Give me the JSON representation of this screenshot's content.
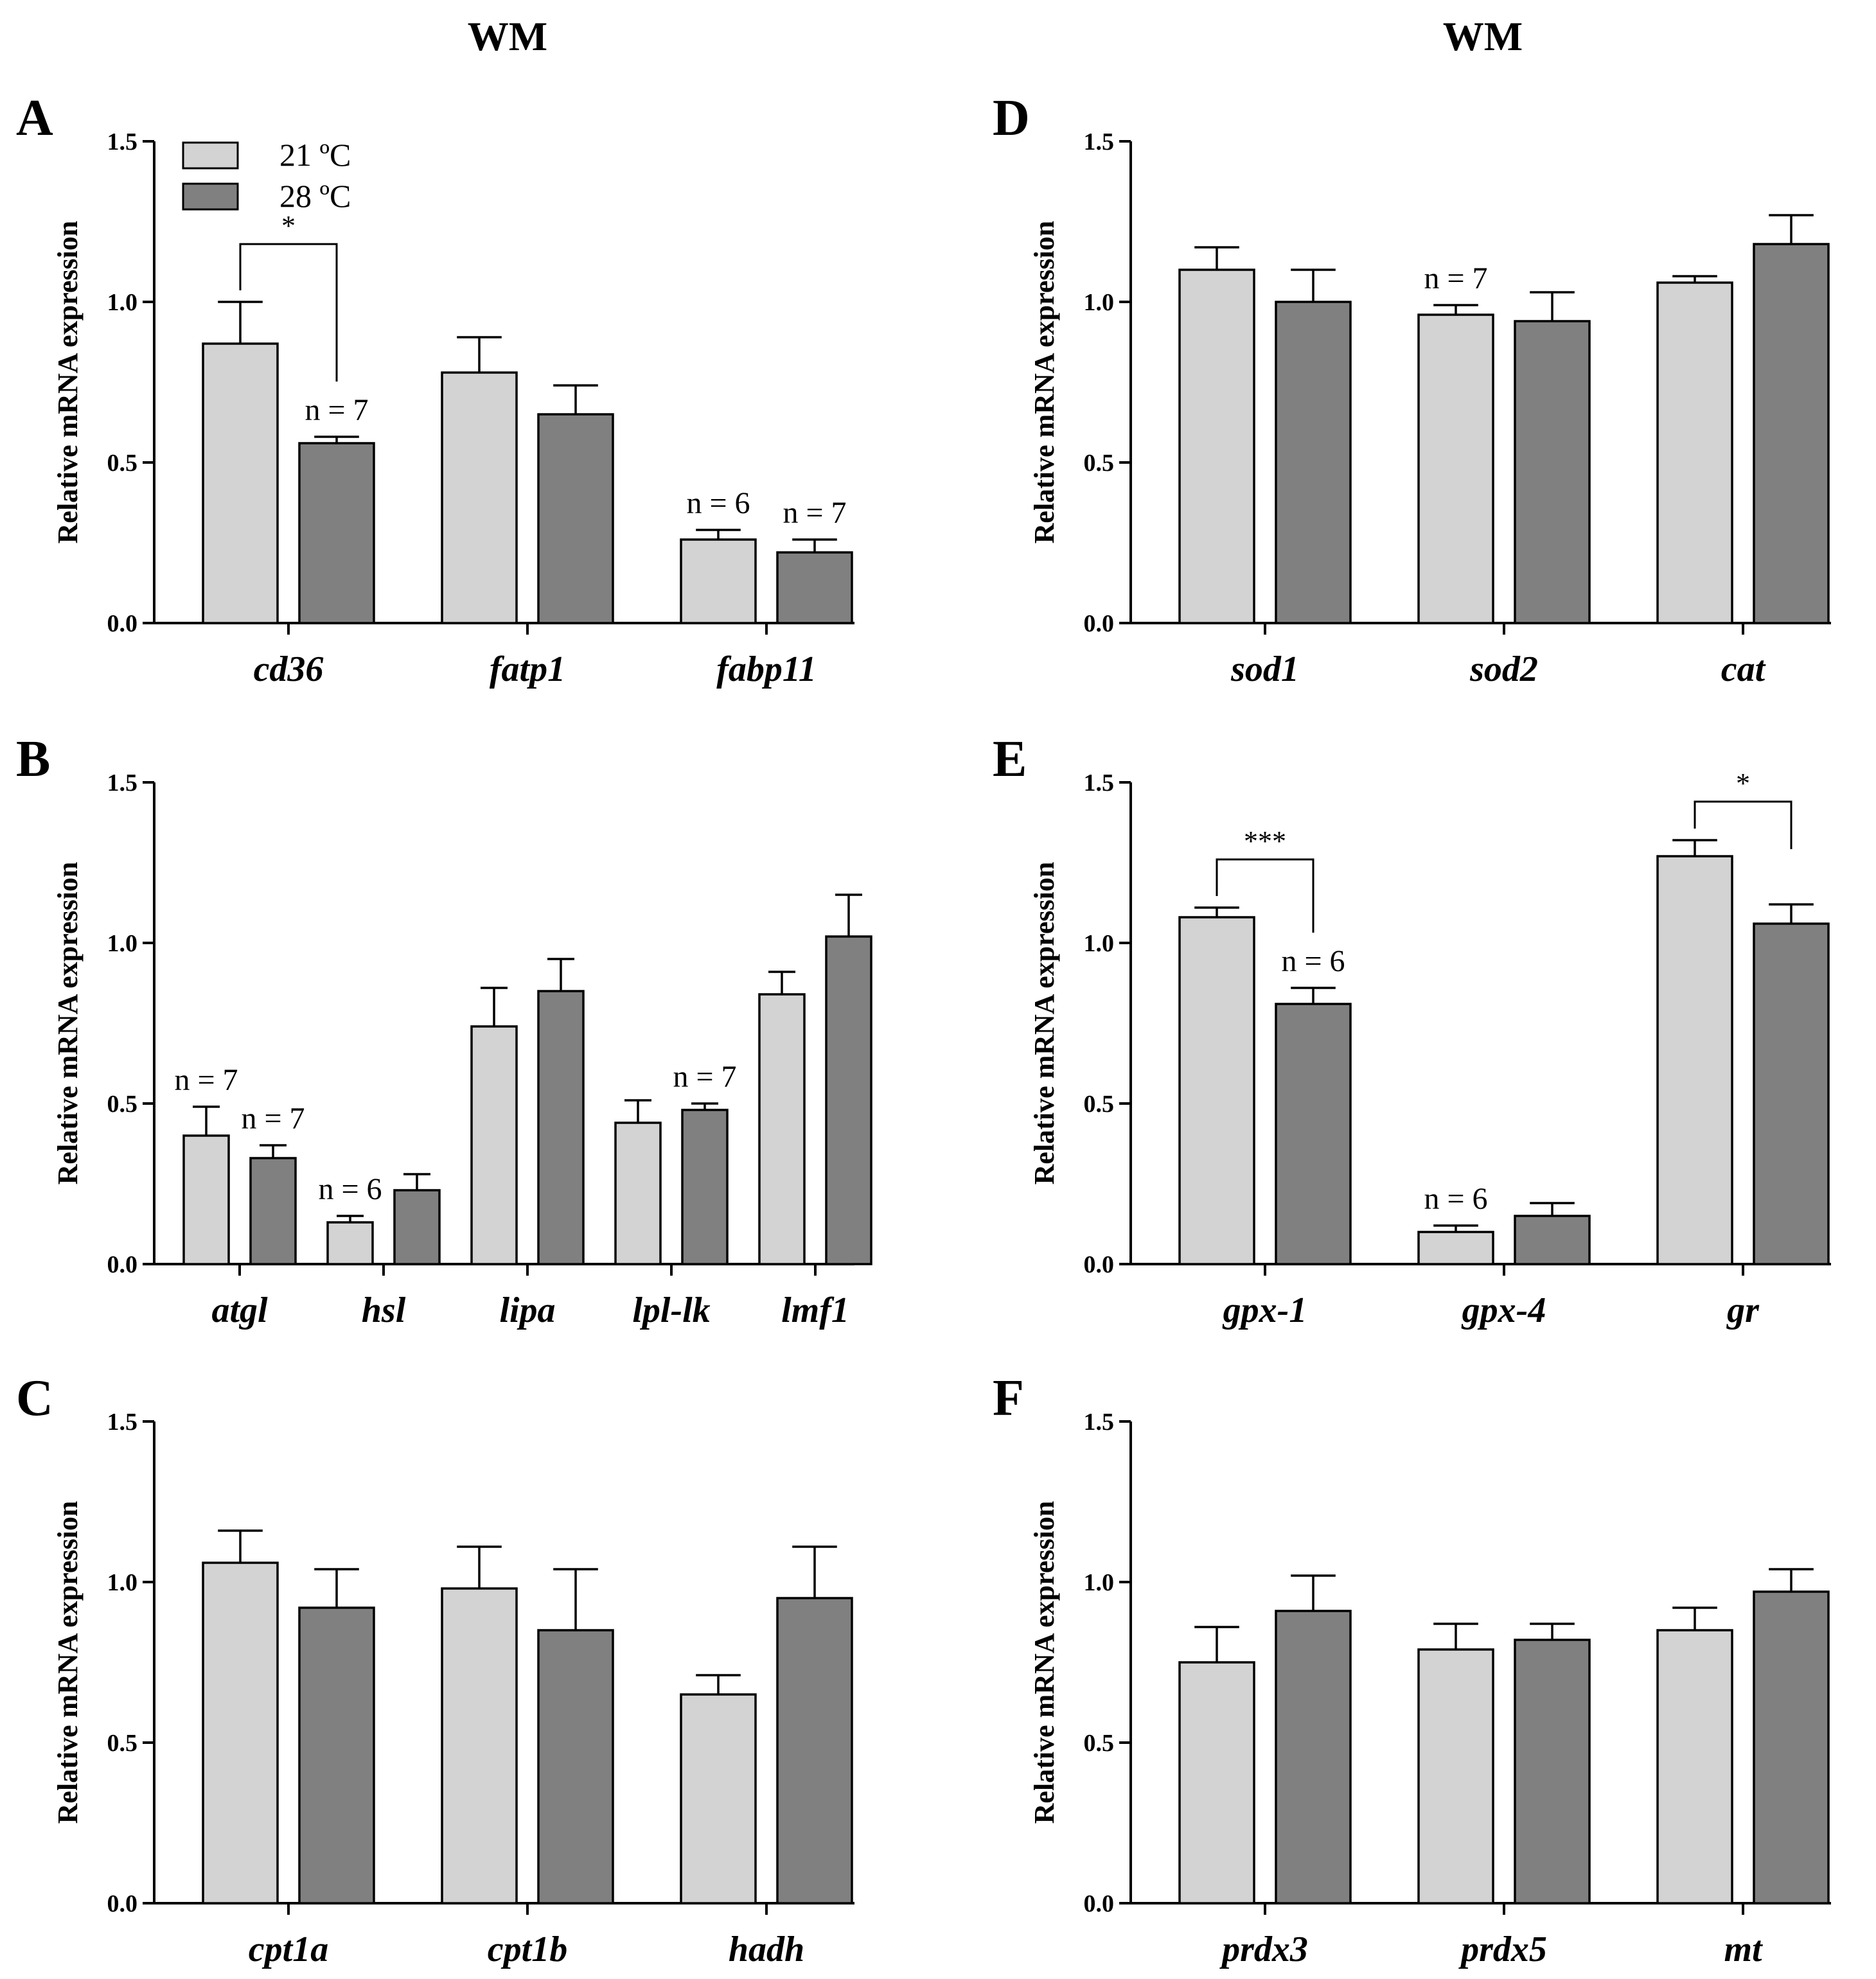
{
  "figure": {
    "column_titles": [
      "WM",
      "WM"
    ]
  },
  "legend": {
    "items": [
      {
        "label": "21 ºC",
        "color": "#d3d3d3"
      },
      {
        "label": "28 ºC",
        "color": "#808080"
      }
    ]
  },
  "chart_data": [
    {
      "type": "bar",
      "panel": "A",
      "title": "",
      "xlabel": "",
      "ylabel": "Relative mRNA expression",
      "ylim": [
        0,
        1.5
      ],
      "yticks": [
        "0.0",
        "0.5",
        "1.0",
        "1.5"
      ],
      "categories": [
        "cd36",
        "fatp1",
        "fabp11"
      ],
      "series": [
        {
          "name": "21 ºC",
          "values": [
            0.87,
            0.78,
            0.26
          ],
          "errors": [
            0.13,
            0.11,
            0.03
          ]
        },
        {
          "name": "28 ºC",
          "values": [
            0.56,
            0.65,
            0.22
          ],
          "errors": [
            0.02,
            0.09,
            0.04
          ]
        }
      ],
      "annotations": [
        {
          "category": 0,
          "series": 1,
          "text": "n = 7"
        },
        {
          "category": 2,
          "series": 0,
          "text": "n = 6"
        },
        {
          "category": 2,
          "series": 1,
          "text": "n = 7"
        }
      ],
      "significance": [
        {
          "category": 0,
          "text": "*",
          "level": 1.18
        }
      ],
      "legend": true
    },
    {
      "type": "bar",
      "panel": "B",
      "title": "",
      "xlabel": "",
      "ylabel": "Relative mRNA expression",
      "ylim": [
        0,
        1.5
      ],
      "yticks": [
        "0.0",
        "0.5",
        "1.0",
        "1.5"
      ],
      "categories": [
        "atgl",
        "hsl",
        "lipa",
        "lpl-lk",
        "lmf1"
      ],
      "series": [
        {
          "name": "21 ºC",
          "values": [
            0.4,
            0.13,
            0.74,
            0.44,
            0.84
          ],
          "errors": [
            0.09,
            0.02,
            0.12,
            0.07,
            0.07
          ]
        },
        {
          "name": "28 ºC",
          "values": [
            0.33,
            0.23,
            0.85,
            0.48,
            1.02
          ],
          "errors": [
            0.04,
            0.05,
            0.1,
            0.02,
            0.13
          ]
        }
      ],
      "annotations": [
        {
          "category": 0,
          "series": 0,
          "text": "n = 7"
        },
        {
          "category": 0,
          "series": 1,
          "text": "n = 7"
        },
        {
          "category": 1,
          "series": 0,
          "text": "n = 6"
        },
        {
          "category": 3,
          "series": 1,
          "text": "n = 7"
        }
      ],
      "significance": [],
      "legend": false
    },
    {
      "type": "bar",
      "panel": "C",
      "title": "",
      "xlabel": "",
      "ylabel": "Relative mRNA expression",
      "ylim": [
        0,
        1.5
      ],
      "yticks": [
        "0.0",
        "0.5",
        "1.0",
        "1.5"
      ],
      "categories": [
        "cpt1a",
        "cpt1b",
        "hadh"
      ],
      "series": [
        {
          "name": "21 ºC",
          "values": [
            1.06,
            0.98,
            0.65
          ],
          "errors": [
            0.1,
            0.13,
            0.06
          ]
        },
        {
          "name": "28 ºC",
          "values": [
            0.92,
            0.85,
            0.95
          ],
          "errors": [
            0.12,
            0.19,
            0.16
          ]
        }
      ],
      "annotations": [],
      "significance": [],
      "legend": false
    },
    {
      "type": "bar",
      "panel": "D",
      "title": "",
      "xlabel": "",
      "ylabel": "Relative mRNA expression",
      "ylim": [
        0,
        1.5
      ],
      "yticks": [
        "0.0",
        "0.5",
        "1.0",
        "1.5"
      ],
      "categories": [
        "sod1",
        "sod2",
        "cat"
      ],
      "series": [
        {
          "name": "21 ºC",
          "values": [
            1.1,
            0.96,
            1.06
          ],
          "errors": [
            0.07,
            0.03,
            0.02
          ]
        },
        {
          "name": "28 ºC",
          "values": [
            1.0,
            0.94,
            1.18
          ],
          "errors": [
            0.1,
            0.09,
            0.09
          ]
        }
      ],
      "annotations": [
        {
          "category": 1,
          "series": 0,
          "text": "n = 7"
        }
      ],
      "significance": [],
      "legend": false
    },
    {
      "type": "bar",
      "panel": "E",
      "title": "",
      "xlabel": "",
      "ylabel": "Relative mRNA expression",
      "ylim": [
        0,
        1.5
      ],
      "yticks": [
        "0.0",
        "0.5",
        "1.0",
        "1.5"
      ],
      "categories": [
        "gpx-1",
        "gpx-4",
        "gr"
      ],
      "series": [
        {
          "name": "21 ºC",
          "values": [
            1.08,
            0.1,
            1.27
          ],
          "errors": [
            0.03,
            0.02,
            0.05
          ]
        },
        {
          "name": "28 ºC",
          "values": [
            0.81,
            0.15,
            1.06
          ],
          "errors": [
            0.05,
            0.04,
            0.06
          ]
        }
      ],
      "annotations": [
        {
          "category": 0,
          "series": 1,
          "text": "n = 6"
        },
        {
          "category": 1,
          "series": 0,
          "text": "n = 6"
        }
      ],
      "significance": [
        {
          "category": 0,
          "text": "***",
          "level": 1.26
        },
        {
          "category": 2,
          "text": "*",
          "level": 1.44
        }
      ],
      "legend": false
    },
    {
      "type": "bar",
      "panel": "F",
      "title": "",
      "xlabel": "",
      "ylabel": "Relative mRNA expression",
      "ylim": [
        0,
        1.5
      ],
      "yticks": [
        "0.0",
        "0.5",
        "1.0",
        "1.5"
      ],
      "categories": [
        "prdx3",
        "prdx5",
        "mt"
      ],
      "series": [
        {
          "name": "21 ºC",
          "values": [
            0.75,
            0.79,
            0.85
          ],
          "errors": [
            0.11,
            0.08,
            0.07
          ]
        },
        {
          "name": "28 ºC",
          "values": [
            0.91,
            0.82,
            0.97
          ],
          "errors": [
            0.11,
            0.05,
            0.07
          ]
        }
      ],
      "annotations": [],
      "significance": [],
      "legend": false
    }
  ]
}
